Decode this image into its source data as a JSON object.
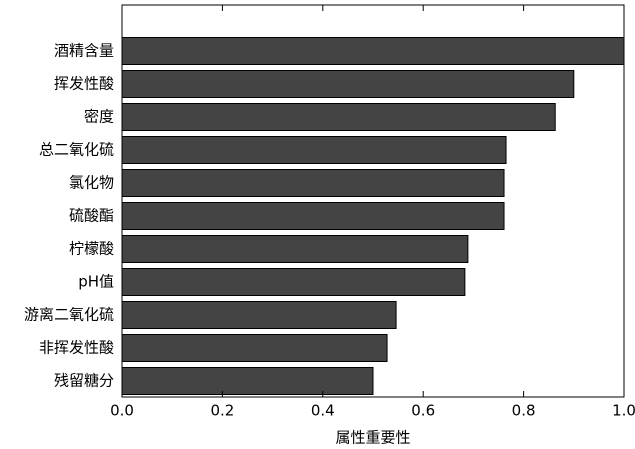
{
  "chart_data": {
    "type": "barh",
    "xlabel": "属性重要性",
    "categories": [
      "酒精含量",
      "挥发性酸",
      "密度",
      "总二氧化硫",
      "氯化物",
      "硫酸酯",
      "柠檬酸",
      "pH值",
      "游离二氧化硫",
      "非挥发性酸",
      "残留糖分"
    ],
    "values": [
      1.0,
      0.9,
      0.863,
      0.765,
      0.761,
      0.761,
      0.689,
      0.683,
      0.546,
      0.528,
      0.5
    ],
    "color": "#444444",
    "xlim": [
      0,
      1
    ],
    "xticks": [
      {
        "value": 0,
        "label": "0.0"
      },
      0.2,
      0.4,
      0.6,
      0.8,
      {
        "value": 1,
        "label": "1.0"
      }
    ]
  }
}
